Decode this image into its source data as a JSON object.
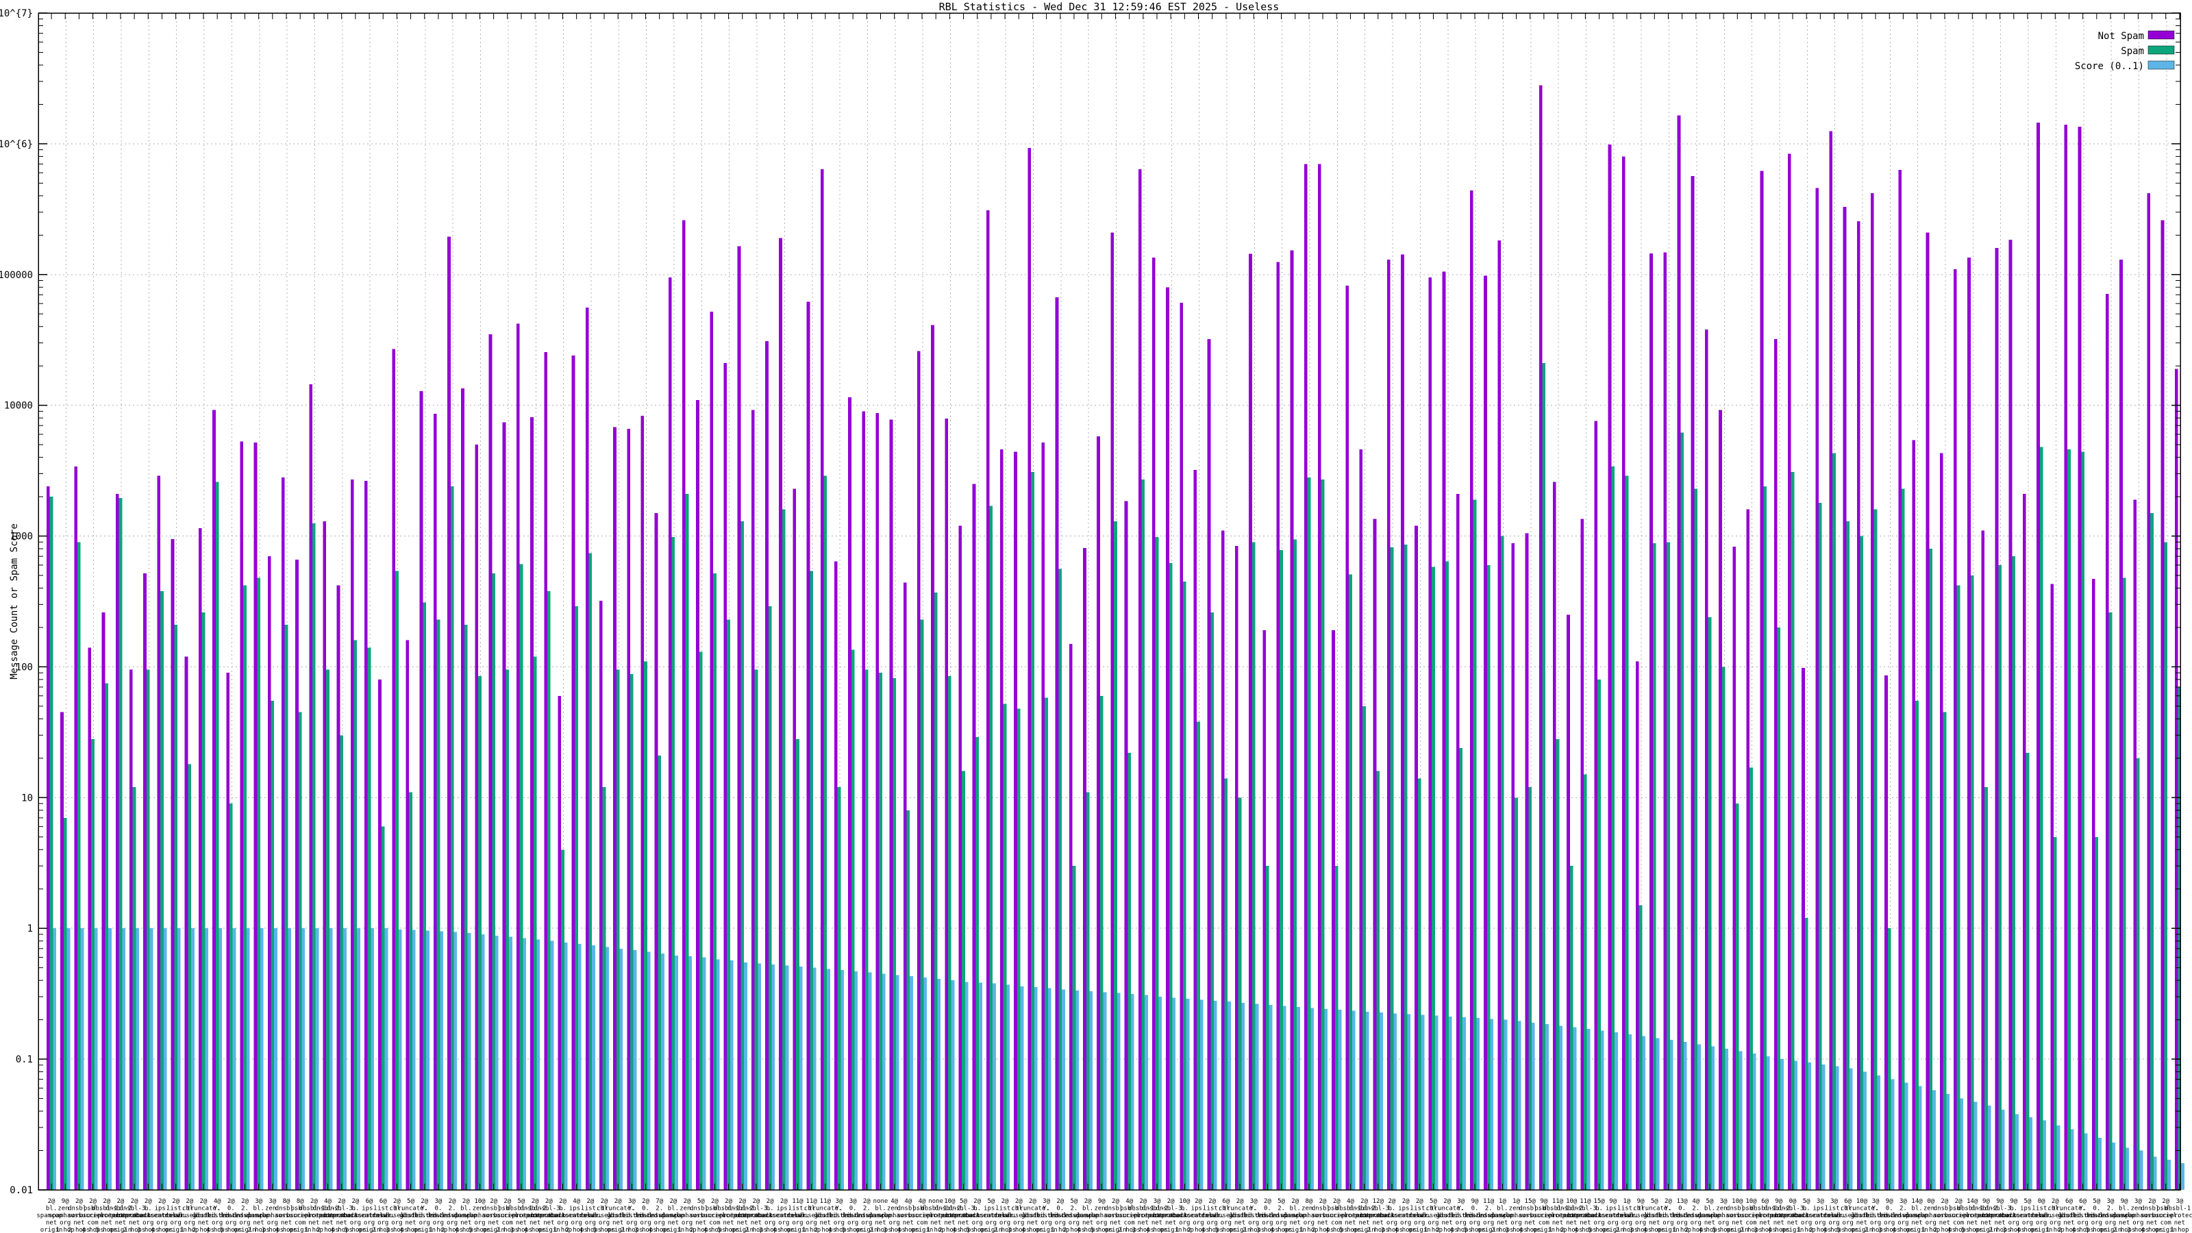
{
  "title": "RBL Statistics - Wed Dec 31 12:59:46 EST 2025 - Useless",
  "ylabel": "Message Count or Spam Score",
  "legend": [
    {
      "label": "Not Spam",
      "color": "#9400d3"
    },
    {
      "label": "Spam",
      "color": "#0ea47c"
    },
    {
      "label": "Score (0..1)",
      "color": "#5cb5e6"
    }
  ],
  "colors": {
    "not_spam": "#9400d3",
    "spam": "#0ea47c",
    "score": "#5cb5e6",
    "grid": "#b0b0b0",
    "axis": "#000000",
    "background": "#ffffff"
  },
  "chart_data": {
    "type": "bar",
    "scale": "log",
    "title": "RBL Statistics - Wed Dec 31 12:59:46 EST 2025 - Useless",
    "xlabel": "",
    "ylabel": "Message Count or Spam Score",
    "ylim": [
      0.01,
      10000000
    ],
    "ytick_values": [
      10000000,
      1000000,
      100000,
      10000,
      1000,
      100,
      10,
      1,
      0.1,
      0.01
    ],
    "ytick_labels": [
      "1x10^{7}",
      "1x10^{6}",
      "100000",
      "10000",
      "1000",
      "100",
      "10",
      "1",
      "0.1",
      "0.01"
    ],
    "grid": true,
    "legend_position": "top-right",
    "group_count": 155,
    "rbl_hosts": [
      [
        "bl.",
        "spamcop.",
        "net"
      ],
      [
        "zen.",
        "spamhaus.",
        "org"
      ],
      [
        "dnsbl.",
        "sorbs.",
        "net"
      ],
      [
        "psbl.",
        "surriel.",
        "com"
      ],
      [
        "dnsbl-1.",
        "uceprotect.",
        "net"
      ],
      [
        "dnsbl-2.",
        "uceprotect.",
        "net"
      ],
      [
        "dnsbl-3.",
        "uceprotect.",
        "net"
      ],
      [
        "b.",
        "barracudacentral.",
        "org"
      ],
      [
        "ips.",
        "backscatterer.",
        "org"
      ],
      [
        "list.",
        "dnswl.",
        "org"
      ],
      [
        "cbl.",
        "abuseat.",
        "org"
      ],
      [
        "truncate.",
        "gbudb.",
        "net"
      ],
      [
        "Y.",
        "listed.dnswl.",
        "org"
      ],
      [
        "0.",
        "listed.dnswl.",
        "org"
      ],
      [
        "2.",
        "listed.dnswl.",
        "org"
      ]
    ],
    "hop_labels": [
      "origin",
      "1 hop",
      "2 hops",
      "3 hops",
      "4 hops",
      "5 hops"
    ],
    "counts": [
      "2",
      "9",
      "2",
      "2",
      "2",
      "2",
      "2",
      "2",
      "2",
      "2",
      "2",
      "2",
      "4",
      "2",
      "2",
      "3",
      "3",
      "8",
      "8",
      "2",
      "4",
      "2",
      "2",
      "6",
      "6",
      "2",
      "5",
      "2",
      "3",
      "2",
      "2",
      "10",
      "2",
      "2",
      "5",
      "2",
      "2",
      "2",
      "4",
      "2",
      "2",
      "2",
      "3",
      "2",
      "7",
      "2",
      "2",
      "5",
      "2",
      "2",
      "2",
      "2",
      "2",
      "2",
      "11",
      "11",
      "11",
      "3",
      "3",
      "2",
      "none",
      "4",
      "4",
      "4",
      "none",
      "10",
      "5",
      "2",
      "5",
      "2",
      "2",
      "2",
      "3",
      "2",
      "5",
      "2",
      "9",
      "2",
      "4",
      "2",
      "3",
      "2",
      "10",
      "2",
      "2",
      "6",
      "2",
      "3",
      "2",
      "5",
      "2",
      "8",
      "2",
      "2",
      "4",
      "2",
      "12",
      "2",
      "2",
      "2",
      "5",
      "2",
      "3",
      "9",
      "11",
      "1",
      "1",
      "15",
      "9",
      "11",
      "10",
      "11",
      "15",
      "9",
      "1",
      "9",
      "5",
      "2",
      "13",
      "4",
      "5",
      "3",
      "10",
      "10",
      "6",
      "9",
      "0",
      "5",
      "3",
      "3",
      "6",
      "10",
      "3",
      "9",
      "3",
      "14",
      "0",
      "2",
      "2",
      "14",
      "9",
      "9",
      "9",
      "5",
      "0",
      "2",
      "6",
      "6",
      "5",
      "3",
      "9",
      "3",
      "2",
      "2",
      "3"
    ],
    "series": [
      {
        "name": "Not Spam",
        "color": "#9400d3",
        "values": [
          2400,
          45,
          3400,
          140,
          260,
          2100,
          95,
          520,
          2900,
          950,
          120,
          1150,
          9200,
          90,
          5300,
          5200,
          700,
          2800,
          660,
          14500,
          1300,
          420,
          2700,
          2650,
          80,
          27000,
          160,
          12800,
          8600,
          195000,
          13500,
          5000,
          35000,
          7400,
          42000,
          8100,
          25500,
          60,
          24000,
          56000,
          320,
          6800,
          6600,
          8300,
          1500,
          95000,
          260000,
          11000,
          52000,
          21000,
          165000,
          9200,
          31000,
          190000,
          2300,
          62000,
          640000,
          640,
          11500,
          9000,
          8700,
          7800,
          440,
          26000,
          41000,
          7900,
          1200,
          2500,
          310000,
          4600,
          4400,
          930000,
          5200,
          67000,
          150,
          810,
          5800,
          210000,
          1850,
          640000,
          135000,
          80000,
          61000,
          3200,
          32000,
          1100,
          840,
          144000,
          190,
          125000,
          153000,
          700000,
          700000,
          190,
          82000,
          4600,
          1350,
          130000,
          142000,
          1200,
          95000,
          105000,
          2100,
          440000,
          98000,
          182000,
          880,
          1050,
          2800000,
          2600,
          250,
          1350,
          7600,
          985000,
          800000,
          110,
          145000,
          148000,
          1650000,
          565000,
          38000,
          9200,
          830,
          1600,
          620000,
          32000,
          840000,
          98,
          460000,
          1250000,
          330000,
          255000,
          420000,
          86,
          630000,
          5400,
          210000,
          4300,
          110000,
          135000,
          1100,
          160000,
          185000,
          2100,
          1450000,
          430,
          1400000,
          1350000,
          470,
          71000,
          130000,
          1900,
          420000,
          260000,
          19000
        ]
      },
      {
        "name": "Spam",
        "color": "#0ea47c",
        "values": [
          2000,
          7,
          900,
          28,
          75,
          1950,
          12,
          95,
          380,
          210,
          18,
          260,
          2600,
          9,
          420,
          480,
          55,
          210,
          45,
          1250,
          95,
          30,
          160,
          140,
          6,
          540,
          11,
          310,
          230,
          2400,
          210,
          85,
          520,
          95,
          610,
          120,
          380,
          4,
          290,
          740,
          12,
          95,
          88,
          110,
          21,
          980,
          2100,
          130,
          520,
          230,
          1300,
          95,
          290,
          1600,
          28,
          540,
          2900,
          12,
          135,
          95,
          90,
          82,
          8,
          230,
          370,
          85,
          16,
          29,
          1700,
          52,
          48,
          3100,
          58,
          560,
          3,
          11,
          60,
          1300,
          22,
          2700,
          980,
          620,
          450,
          38,
          260,
          14,
          10,
          900,
          3,
          780,
          940,
          2800,
          2700,
          3,
          510,
          50,
          16,
          820,
          860,
          14,
          580,
          640,
          24,
          1900,
          600,
          1000,
          10,
          12,
          21000,
          28,
          3,
          15,
          80,
          3400,
          2900,
          1.5,
          880,
          900,
          6200,
          2300,
          240,
          100,
          9,
          17,
          2400,
          200,
          3100,
          1.2,
          1800,
          4300,
          1300,
          1000,
          1600,
          1,
          2300,
          55,
          800,
          45,
          420,
          500,
          12,
          600,
          700,
          22,
          4800,
          5,
          4600,
          4400,
          5,
          260,
          480,
          20,
          1500,
          900,
          70
        ]
      },
      {
        "name": "Score (0..1)",
        "color": "#5cb5e6",
        "values": [
          1,
          1,
          1,
          1,
          1,
          1,
          1,
          1,
          1,
          1,
          1,
          1,
          1,
          1,
          1,
          1,
          1,
          1,
          1,
          1,
          1,
          1,
          1,
          1,
          1,
          0.98,
          0.97,
          0.96,
          0.95,
          0.94,
          0.92,
          0.9,
          0.88,
          0.86,
          0.84,
          0.82,
          0.8,
          0.78,
          0.76,
          0.74,
          0.72,
          0.7,
          0.68,
          0.66,
          0.64,
          0.62,
          0.61,
          0.6,
          0.58,
          0.57,
          0.55,
          0.54,
          0.53,
          0.52,
          0.51,
          0.5,
          0.49,
          0.48,
          0.47,
          0.46,
          0.45,
          0.44,
          0.43,
          0.42,
          0.41,
          0.4,
          0.39,
          0.385,
          0.38,
          0.37,
          0.36,
          0.355,
          0.35,
          0.34,
          0.335,
          0.33,
          0.325,
          0.32,
          0.315,
          0.31,
          0.3,
          0.295,
          0.29,
          0.285,
          0.28,
          0.275,
          0.27,
          0.265,
          0.26,
          0.255,
          0.25,
          0.246,
          0.242,
          0.238,
          0.234,
          0.23,
          0.227,
          0.224,
          0.221,
          0.218,
          0.215,
          0.212,
          0.209,
          0.206,
          0.203,
          0.2,
          0.195,
          0.19,
          0.185,
          0.18,
          0.175,
          0.17,
          0.165,
          0.16,
          0.155,
          0.15,
          0.145,
          0.14,
          0.135,
          0.13,
          0.125,
          0.12,
          0.115,
          0.11,
          0.105,
          0.1,
          0.097,
          0.094,
          0.091,
          0.088,
          0.085,
          0.08,
          0.075,
          0.07,
          0.066,
          0.062,
          0.058,
          0.054,
          0.05,
          0.047,
          0.044,
          0.041,
          0.038,
          0.036,
          0.034,
          0.031,
          0.029,
          0.027,
          0.025,
          0.023,
          0.021,
          0.02,
          0.018,
          0.017,
          0.016
        ]
      }
    ]
  }
}
